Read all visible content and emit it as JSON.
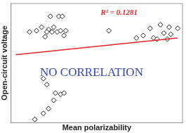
{
  "chart_data": {
    "type": "scatter",
    "x_label": "Mean polarizability",
    "y_label": "Open-circuit voltage",
    "xlim": [
      0,
      100
    ],
    "ylim": [
      0,
      100
    ],
    "xticks": [],
    "yticks": [],
    "tick_labels": false,
    "grid": false,
    "annotations": [
      {
        "text": "R² = 0.1281",
        "color": "#e8242a"
      },
      {
        "text": "NO CORRELATION",
        "color": "#3344b8"
      }
    ],
    "series": [
      {
        "type": "scatter",
        "color": "#222222",
        "marker": "diamond",
        "x": [
          11,
          15,
          18,
          22,
          25,
          23,
          28,
          30,
          21,
          24,
          27,
          29,
          32,
          31,
          20,
          57,
          14,
          19,
          22,
          25,
          26,
          19,
          21,
          29,
          31,
          77,
          81,
          87,
          89,
          93,
          97,
          92,
          83,
          85,
          91,
          73
        ],
        "values": [
          76,
          77,
          80,
          78,
          80,
          89,
          89,
          89,
          76,
          76,
          76,
          77,
          77,
          73,
          72,
          77,
          3,
          8,
          12,
          19,
          25,
          37,
          32,
          24,
          25,
          73,
          79,
          82,
          75,
          74,
          79,
          80,
          71,
          70,
          70,
          71
        ]
      },
      {
        "type": "line",
        "color": "#e8242a",
        "marker": "none",
        "x": [
          3,
          97
        ],
        "values": [
          57,
          71
        ]
      }
    ]
  }
}
